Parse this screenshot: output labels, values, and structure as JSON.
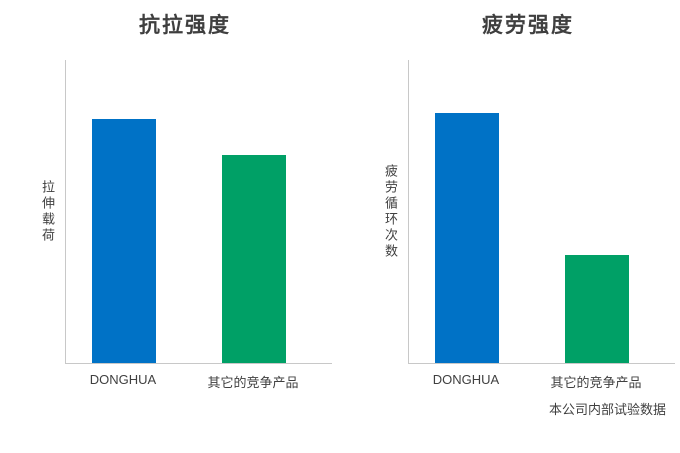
{
  "chart_data": [
    {
      "type": "bar",
      "title": "抗拉强度",
      "ylabel": "拉伸载荷",
      "xlabel": "",
      "categories": [
        "DONGHUA",
        "其它的竞争产品"
      ],
      "values": [
        100,
        85
      ],
      "ylim": [
        0,
        124
      ],
      "grid": false,
      "legend": "none",
      "colors": [
        "#0072c6",
        "#00a066"
      ]
    },
    {
      "type": "bar",
      "title": "疲劳强度",
      "ylabel": "疲劳循环次数",
      "xlabel": "",
      "categories": [
        "DONGHUA",
        "其它的竞争产品"
      ],
      "values": [
        100,
        43
      ],
      "ylim": [
        0,
        121
      ],
      "grid": false,
      "legend": "none",
      "colors": [
        "#0072c6",
        "#00a066"
      ]
    }
  ],
  "footnote": "本公司内部试验数据",
  "colors": {
    "bar_blue": "#0072c6",
    "bar_green": "#00a066",
    "axis_gray": "#c8c8c8",
    "text_dark": "#3f3f3f"
  }
}
